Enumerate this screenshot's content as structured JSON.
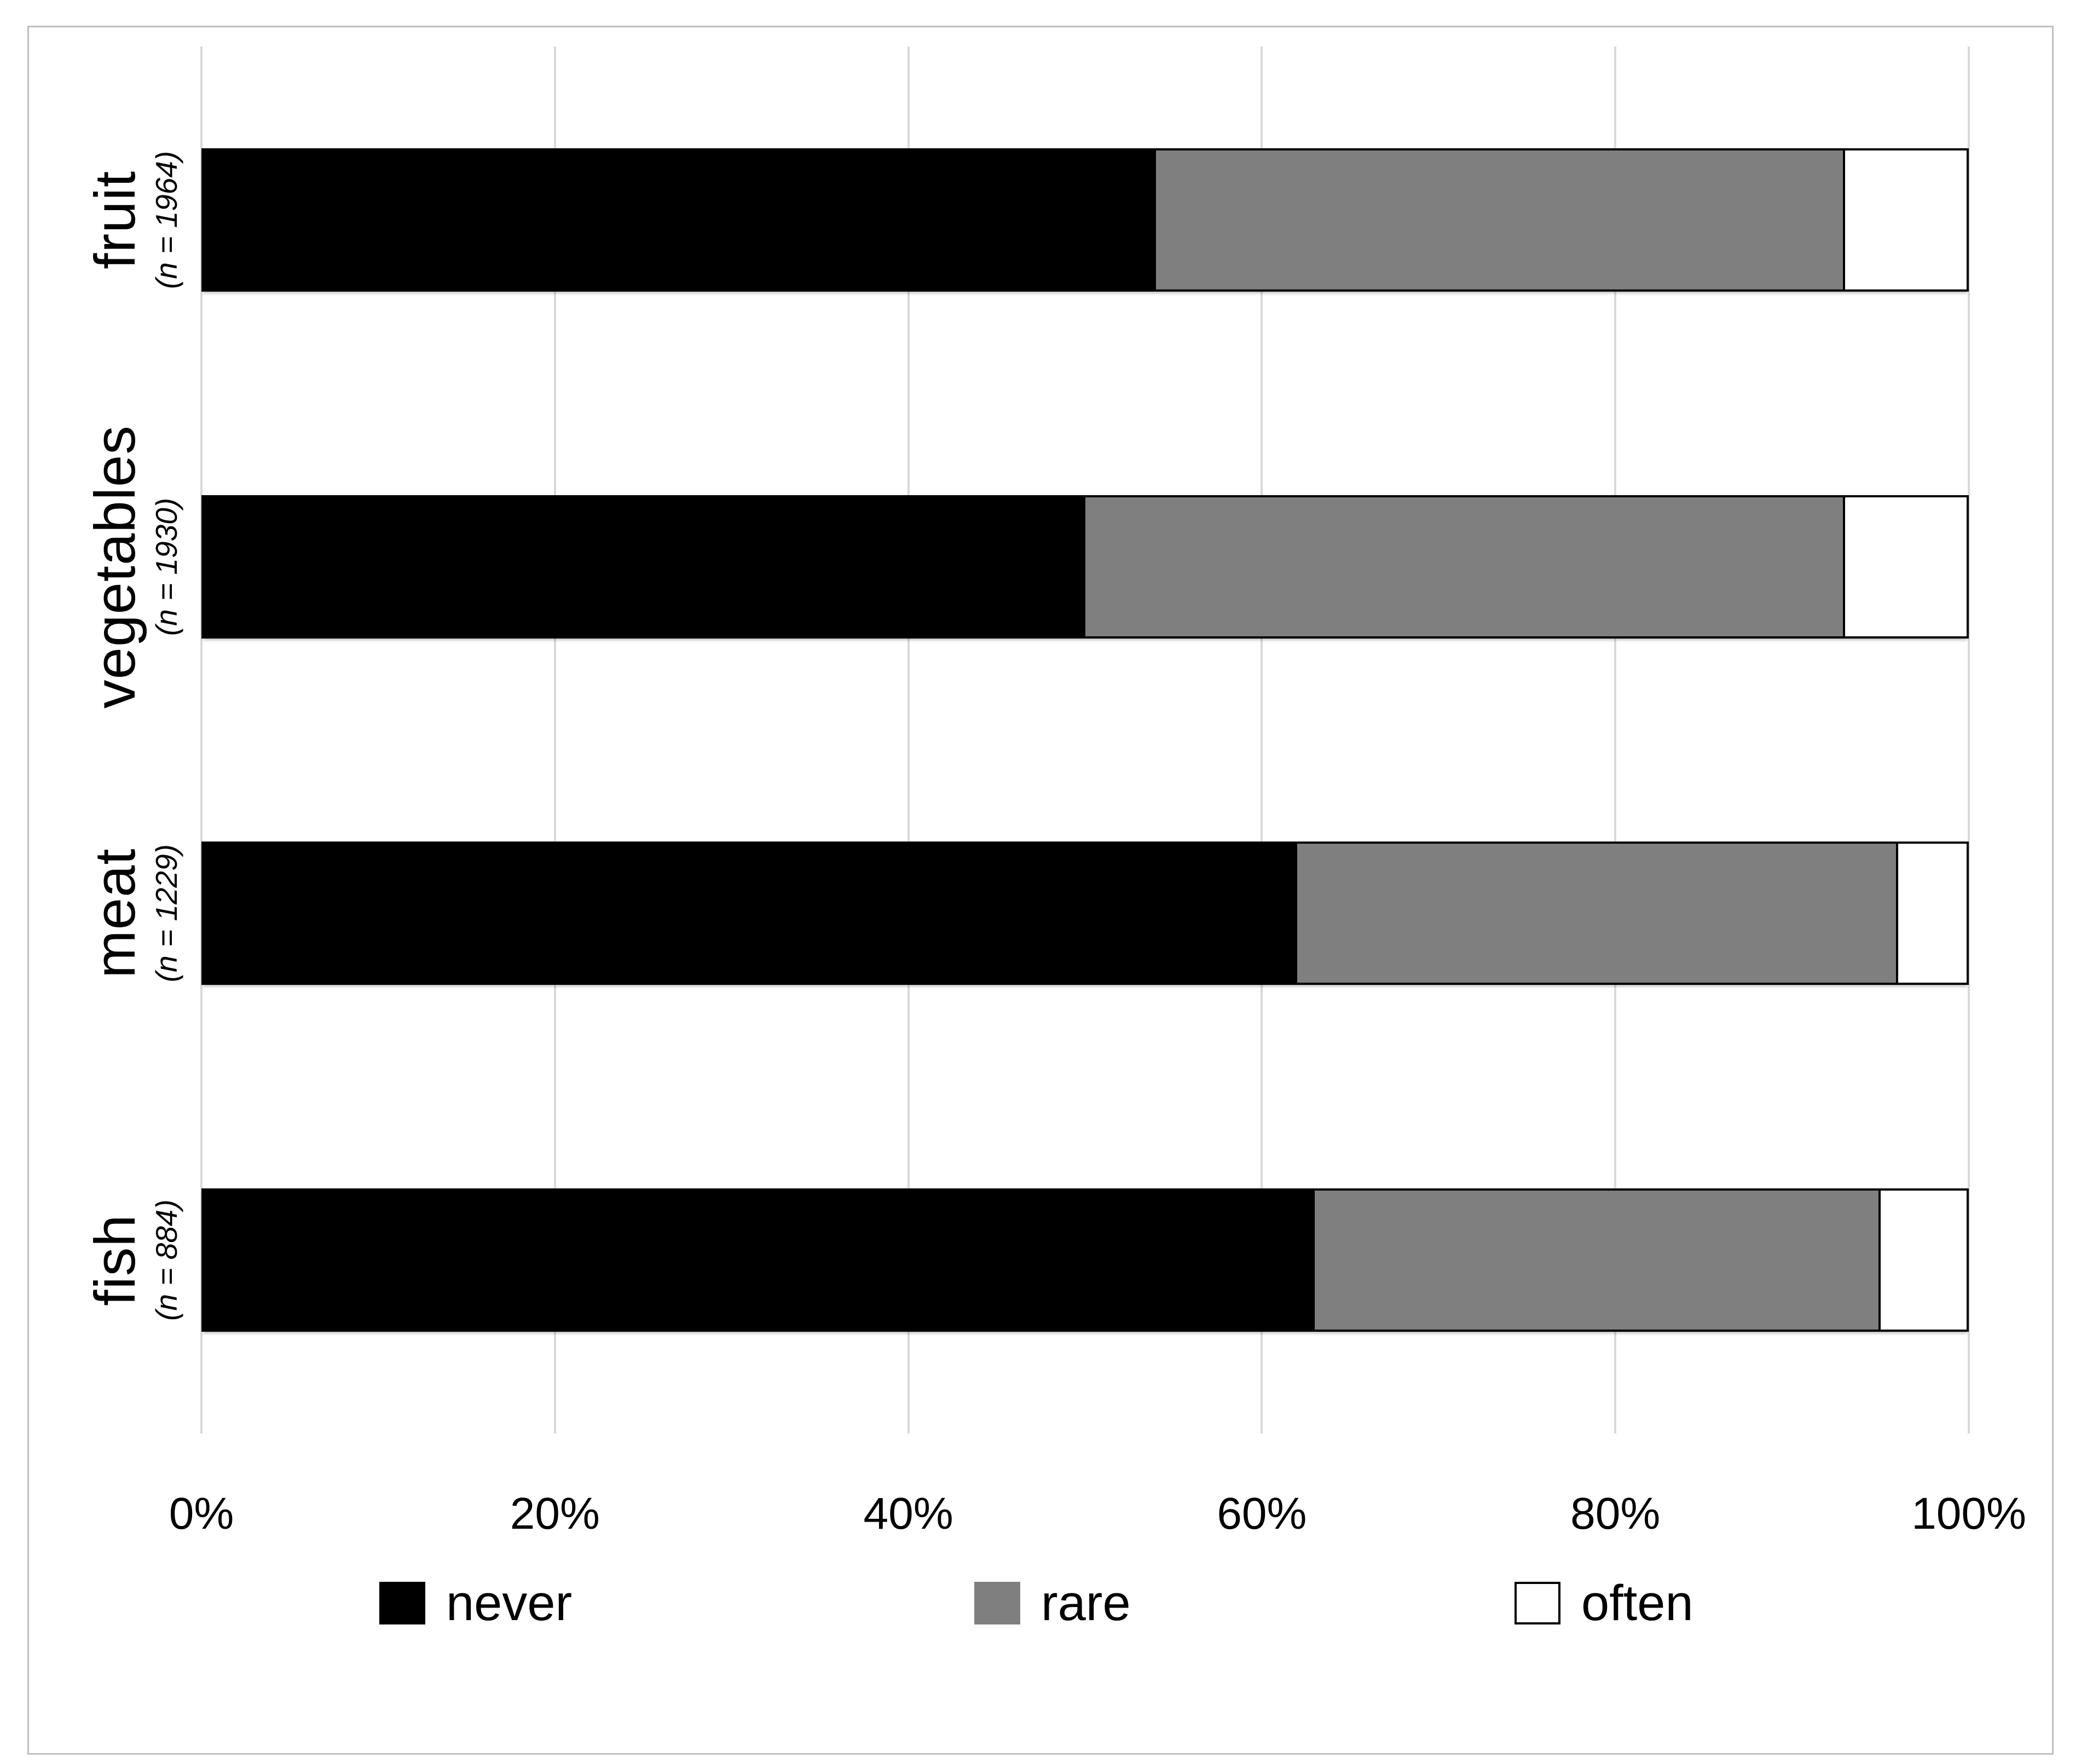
{
  "chart_data": {
    "type": "bar",
    "orientation": "horizontal",
    "stacked": true,
    "unit": "%",
    "xlim": [
      0,
      100
    ],
    "grid": true,
    "legend_position": "bottom",
    "tick_values": [
      0,
      20,
      40,
      60,
      80,
      100
    ],
    "x_ticks": [
      "0%",
      "20%",
      "40%",
      "60%",
      "80%",
      "100%"
    ],
    "categories": [
      {
        "label": "fruit",
        "n_label": "(n = 1964)"
      },
      {
        "label": "vegetables",
        "n_label": "(n = 1930)"
      },
      {
        "label": "meat",
        "n_label": "(n = 1229)"
      },
      {
        "label": "fish",
        "n_label": "(n = 884)"
      }
    ],
    "series": [
      {
        "name": "never",
        "color": "#000000",
        "values": [
          54,
          50,
          62,
          63
        ]
      },
      {
        "name": "rare",
        "color": "#7f7f7f",
        "values": [
          39,
          43,
          34,
          32
        ]
      },
      {
        "name": "often",
        "color": "#ffffff",
        "values": [
          7,
          7,
          4,
          5
        ]
      }
    ]
  },
  "colors": {
    "never": "#000000",
    "rare": "#7f7f7f",
    "often": "#ffffff",
    "gridline": "#d9d9d9",
    "frame_border": "#bfbfbf",
    "text": "#000000"
  }
}
